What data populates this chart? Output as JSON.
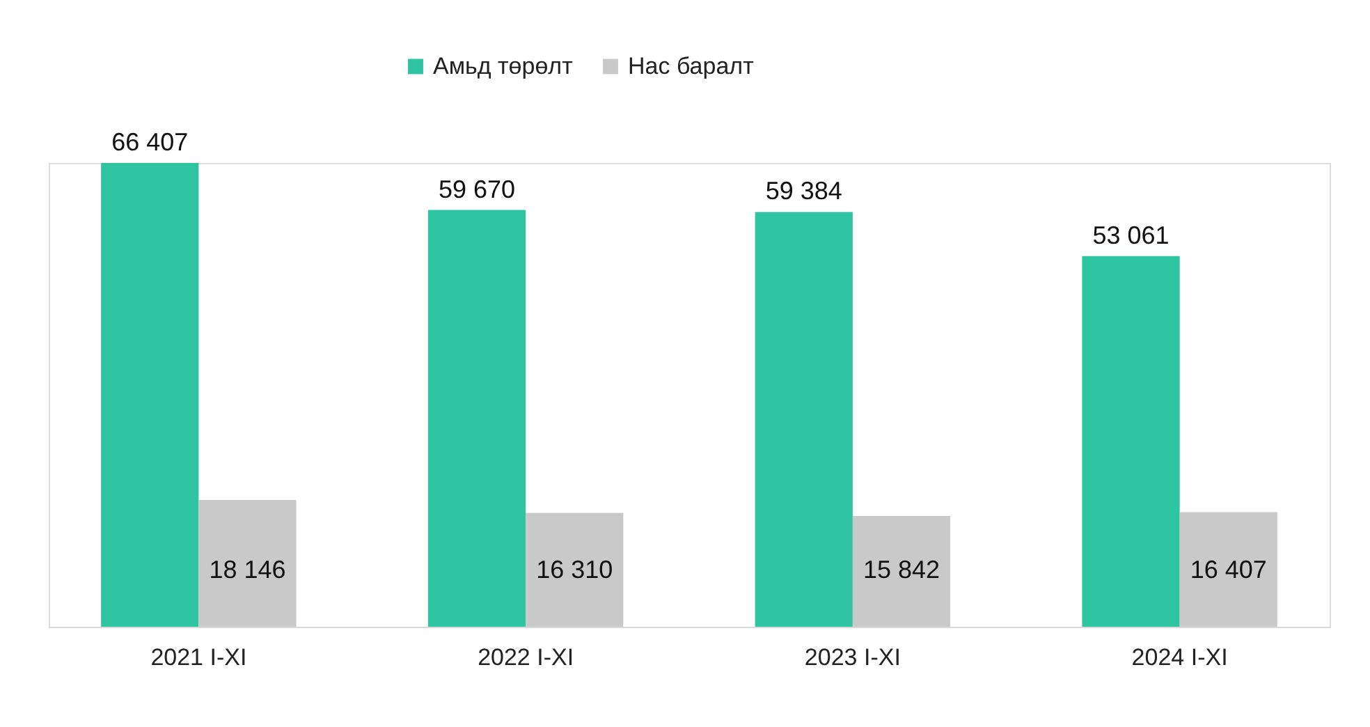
{
  "chart_data": {
    "type": "bar",
    "categories": [
      "2021 I-XI",
      "2022 I-XI",
      "2023 I-XI",
      "2024 I-XI"
    ],
    "series": [
      {
        "name": "Амьд төрөлт",
        "color": "#2ec4a0",
        "values": [
          66407,
          59670,
          59384,
          53061
        ]
      },
      {
        "name": "Нас баралт",
        "color": "#c9c9c9",
        "values": [
          18146,
          16310,
          15842,
          16407
        ]
      }
    ],
    "data_labels": true,
    "legend": "top",
    "grid": false
  }
}
